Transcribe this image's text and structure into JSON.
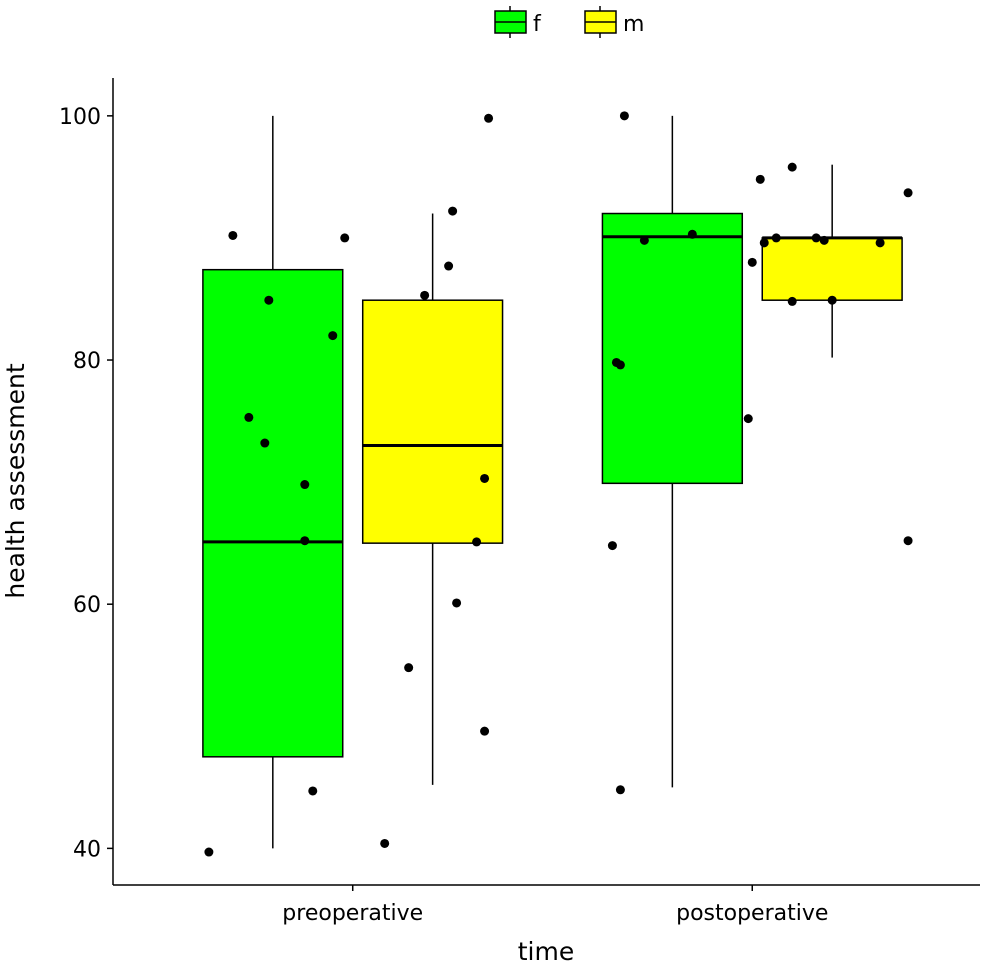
{
  "chart_data": {
    "type": "boxplot",
    "title": "",
    "xlabel": "time",
    "ylabel": "health assessment",
    "categories": [
      "preoperative",
      "postoperative"
    ],
    "xlim": [
      0.4,
      2.57
    ],
    "ylim": [
      37,
      103.1
    ],
    "yticks": [
      40,
      60,
      80,
      100
    ],
    "grid": false,
    "legend": {
      "placement": "top",
      "entries": [
        {
          "label": "f",
          "color": "#00FF00"
        },
        {
          "label": "m",
          "color": "#FFFF00"
        }
      ]
    },
    "series": [
      {
        "name": "f",
        "color": "#00FF00",
        "boxes": [
          {
            "category": "preoperative",
            "x": 0.8,
            "lower_whisker": 40,
            "q1": 47.5,
            "median": 65.1,
            "q3": 87.4,
            "upper_whisker": 100
          },
          {
            "category": "postoperative",
            "x": 1.8,
            "lower_whisker": 45,
            "q1": 69.9,
            "median": 90.1,
            "q3": 92,
            "upper_whisker": 100
          }
        ]
      },
      {
        "name": "m",
        "color": "#FFFF00",
        "boxes": [
          {
            "category": "preoperative",
            "x": 1.2,
            "lower_whisker": 45.2,
            "q1": 65,
            "median": 73,
            "q3": 84.9,
            "upper_whisker": 92
          },
          {
            "category": "postoperative",
            "x": 2.2,
            "lower_whisker": 80.2,
            "q1": 84.9,
            "median": 90,
            "q3": 90,
            "upper_whisker": 96
          }
        ]
      }
    ],
    "points": [
      {
        "x": 0.7,
        "y": 90.2
      },
      {
        "x": 0.79,
        "y": 84.9
      },
      {
        "x": 0.95,
        "y": 82.0
      },
      {
        "x": 0.98,
        "y": 90.0
      },
      {
        "x": 0.74,
        "y": 75.3
      },
      {
        "x": 0.78,
        "y": 73.2
      },
      {
        "x": 0.88,
        "y": 69.8
      },
      {
        "x": 0.88,
        "y": 65.2
      },
      {
        "x": 0.9,
        "y": 44.7
      },
      {
        "x": 0.64,
        "y": 39.7
      },
      {
        "x": 1.34,
        "y": 99.8
      },
      {
        "x": 1.25,
        "y": 92.2
      },
      {
        "x": 1.24,
        "y": 87.7
      },
      {
        "x": 1.18,
        "y": 85.3
      },
      {
        "x": 1.33,
        "y": 70.3
      },
      {
        "x": 1.31,
        "y": 65.1
      },
      {
        "x": 1.26,
        "y": 60.1
      },
      {
        "x": 1.14,
        "y": 54.8
      },
      {
        "x": 1.33,
        "y": 49.6
      },
      {
        "x": 1.08,
        "y": 40.4
      },
      {
        "x": 1.68,
        "y": 100
      },
      {
        "x": 1.85,
        "y": 90.3
      },
      {
        "x": 1.73,
        "y": 89.8
      },
      {
        "x": 1.66,
        "y": 79.8
      },
      {
        "x": 1.67,
        "y": 79.6
      },
      {
        "x": 1.99,
        "y": 75.2
      },
      {
        "x": 1.65,
        "y": 64.8
      },
      {
        "x": 1.67,
        "y": 44.8
      },
      {
        "x": 2.1,
        "y": 95.8
      },
      {
        "x": 2.02,
        "y": 94.8
      },
      {
        "x": 2.39,
        "y": 93.7
      },
      {
        "x": 2.0,
        "y": 88.0
      },
      {
        "x": 2.06,
        "y": 90.0
      },
      {
        "x": 2.03,
        "y": 89.6
      },
      {
        "x": 2.16,
        "y": 90.0
      },
      {
        "x": 2.18,
        "y": 89.8
      },
      {
        "x": 2.32,
        "y": 89.6
      },
      {
        "x": 2.1,
        "y": 84.8
      },
      {
        "x": 2.2,
        "y": 84.9
      },
      {
        "x": 2.39,
        "y": 65.2
      }
    ],
    "box_width": 0.35
  }
}
